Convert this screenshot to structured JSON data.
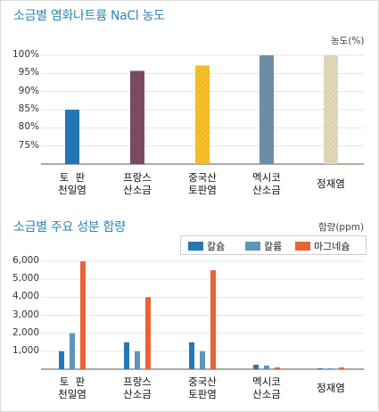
{
  "chart_data": [
    {
      "type": "bar",
      "title": "소금별 염화나트륨 NaCl 농도",
      "unit_label": "농도(%)",
      "categories": [
        "토  판\n천일염",
        "프랑스\n산소금",
        "중국산\n토판염",
        "멕시코\n산소금",
        "정재염"
      ],
      "values": [
        85,
        95.7,
        97.2,
        100,
        100
      ],
      "colors": [
        "#2177b4",
        "#7a4a62",
        "#f5b71b",
        "#6b8ea6",
        "#ddd3b5"
      ],
      "hatched": [
        false,
        false,
        true,
        false,
        true
      ],
      "yticks": [
        75,
        80,
        85,
        90,
        95,
        100
      ],
      "ytick_labels": [
        "75%",
        "80%",
        "85%",
        "90%",
        "95%",
        "100%"
      ],
      "ylim": [
        70,
        100
      ],
      "grid": true
    },
    {
      "type": "bar",
      "title": "소금별 주요 성분 함량",
      "unit_label": "함량(ppm)",
      "categories": [
        "토  판\n천일염",
        "프랑스\n산소금",
        "중국산\n토판염",
        "멕시코\n산소금",
        "정재염"
      ],
      "series": [
        {
          "name": "칼슘",
          "color": "#2478b5",
          "values": [
            1000,
            1500,
            1500,
            250,
            50
          ]
        },
        {
          "name": "칼륨",
          "color": "#5f95b8",
          "values": [
            2000,
            1000,
            1000,
            200,
            50
          ]
        },
        {
          "name": "마그네슘",
          "color": "#e8623a",
          "values": [
            6000,
            4000,
            5500,
            100,
            100
          ]
        }
      ],
      "yticks": [
        1000,
        2000,
        3000,
        4000,
        5000,
        6000
      ],
      "ytick_labels": [
        "1,000",
        "2,000",
        "3,000",
        "4,000",
        "5,000",
        "6,000"
      ],
      "ylim": [
        0,
        6000
      ],
      "legend_position": "top-right",
      "grid": true
    }
  ]
}
